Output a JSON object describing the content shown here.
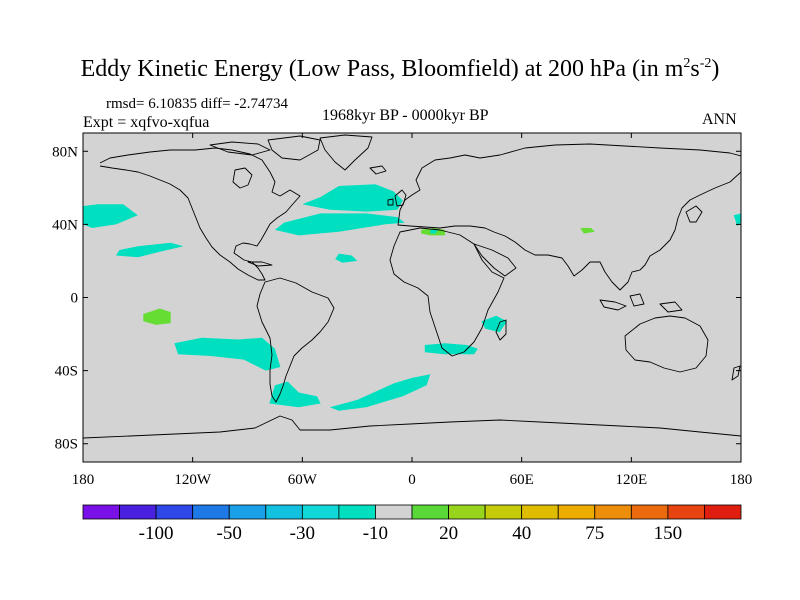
{
  "title": {
    "main": "Eddy Kinetic Energy (Low Pass, Bloomfield) at 200 hPa (in m",
    "sup1": "2",
    "mid": "s",
    "sup2": "-2",
    "close": ")"
  },
  "stats": "rmsd= 6.10835 diff= -2.74734",
  "expt": "Expt = xqfvo-xqfua",
  "period": "1968kyr BP - 0000kyr BP",
  "season": "ANN",
  "map": {
    "lon_range": [
      -180,
      180
    ],
    "lat_range": [
      -90,
      90
    ],
    "ocean_color": "#d3d3d3",
    "land_color": "#d3d3d3",
    "coast_color": "#000000",
    "lat_ticks": [
      {
        "value": 80,
        "label": "80N"
      },
      {
        "value": 40,
        "label": "40N"
      },
      {
        "value": 0,
        "label": "0"
      },
      {
        "value": -40,
        "label": "40S"
      },
      {
        "value": -80,
        "label": "80S"
      }
    ],
    "lon_ticks": [
      {
        "value": -180,
        "label": "180"
      },
      {
        "value": -120,
        "label": "120W"
      },
      {
        "value": -60,
        "label": "60W"
      },
      {
        "value": 0,
        "label": "0"
      },
      {
        "value": 60,
        "label": "60E"
      },
      {
        "value": 120,
        "label": "120E"
      },
      {
        "value": 180,
        "label": "180"
      }
    ]
  },
  "anomaly_regions": [
    {
      "name": "north-pacific-west",
      "color": "#00e0c0",
      "points": [
        [
          -180,
          40
        ],
        [
          -175,
          38
        ],
        [
          -162,
          40
        ],
        [
          -150,
          45
        ],
        [
          -158,
          51
        ],
        [
          -172,
          51
        ],
        [
          -180,
          50
        ]
      ]
    },
    {
      "name": "north-pacific-east",
      "color": "#00e0c0",
      "points": [
        [
          178,
          39
        ],
        [
          180,
          41
        ],
        [
          180,
          46
        ],
        [
          176,
          45
        ]
      ]
    },
    {
      "name": "subtropical-pacific",
      "color": "#00e0c0",
      "points": [
        [
          -162,
          23
        ],
        [
          -150,
          22
        ],
        [
          -138,
          25
        ],
        [
          -125,
          28
        ],
        [
          -132,
          30
        ],
        [
          -150,
          28
        ],
        [
          -160,
          26
        ]
      ]
    },
    {
      "name": "north-atlantic-west",
      "color": "#00e0c0",
      "points": [
        [
          -75,
          37
        ],
        [
          -62,
          34
        ],
        [
          -40,
          36
        ],
        [
          -15,
          40
        ],
        [
          -4,
          41
        ],
        [
          -8,
          44
        ],
        [
          -25,
          46
        ],
        [
          -50,
          46
        ],
        [
          -70,
          41
        ]
      ]
    },
    {
      "name": "north-atlantic-north",
      "color": "#00e0c0",
      "points": [
        [
          -60,
          51
        ],
        [
          -50,
          55
        ],
        [
          -40,
          61
        ],
        [
          -20,
          62
        ],
        [
          -10,
          58
        ],
        [
          -5,
          53
        ],
        [
          -8,
          48
        ],
        [
          -25,
          47
        ],
        [
          -45,
          48
        ]
      ]
    },
    {
      "name": "central-atlantic",
      "color": "#00e0c0",
      "points": [
        [
          -40,
          24
        ],
        [
          -33,
          23
        ],
        [
          -30,
          20
        ],
        [
          -38,
          19
        ],
        [
          -42,
          21
        ]
      ]
    },
    {
      "name": "south-pacific",
      "color": "#00e0c0",
      "points": [
        [
          -130,
          -25
        ],
        [
          -115,
          -22
        ],
        [
          -95,
          -23
        ],
        [
          -82,
          -22
        ],
        [
          -75,
          -28
        ],
        [
          -72,
          -38
        ],
        [
          -80,
          -40
        ],
        [
          -92,
          -34
        ],
        [
          -110,
          -32
        ],
        [
          -128,
          -31
        ]
      ]
    },
    {
      "name": "south-america-tip",
      "color": "#00e0c0",
      "points": [
        [
          -75,
          -48
        ],
        [
          -68,
          -46
        ],
        [
          -62,
          -52
        ],
        [
          -52,
          -54
        ],
        [
          -50,
          -58
        ],
        [
          -62,
          -60
        ],
        [
          -78,
          -58
        ]
      ]
    },
    {
      "name": "south-atlantic",
      "color": "#00e0c0",
      "points": [
        [
          -45,
          -60
        ],
        [
          -30,
          -56
        ],
        [
          -10,
          -47
        ],
        [
          0,
          -44
        ],
        [
          10,
          -42
        ],
        [
          8,
          -48
        ],
        [
          -5,
          -54
        ],
        [
          -25,
          -60
        ],
        [
          -40,
          -62
        ]
      ]
    },
    {
      "name": "south-africa",
      "color": "#00e0c0",
      "points": [
        [
          7,
          -26
        ],
        [
          18,
          -25
        ],
        [
          30,
          -26
        ],
        [
          36,
          -28
        ],
        [
          34,
          -31
        ],
        [
          18,
          -31
        ],
        [
          7,
          -30
        ]
      ]
    },
    {
      "name": "mozambique-channel",
      "color": "#00e0c0",
      "points": [
        [
          38,
          -13
        ],
        [
          46,
          -10
        ],
        [
          52,
          -13
        ],
        [
          48,
          -19
        ],
        [
          40,
          -17
        ]
      ]
    },
    {
      "name": "mediterranean",
      "color": "#66dd33",
      "points": [
        [
          5,
          37
        ],
        [
          12,
          38
        ],
        [
          18,
          37
        ],
        [
          18,
          34
        ],
        [
          10,
          34
        ],
        [
          5,
          35
        ]
      ]
    },
    {
      "name": "mediterranean-core",
      "color": "#00e0c0",
      "points": [
        [
          10,
          37
        ],
        [
          14,
          37
        ],
        [
          13,
          35
        ],
        [
          10,
          35
        ]
      ]
    },
    {
      "name": "tibet",
      "color": "#66dd33",
      "points": [
        [
          92,
          38
        ],
        [
          98,
          38
        ],
        [
          100,
          36
        ],
        [
          94,
          35
        ]
      ]
    },
    {
      "name": "tropical-pacific-green",
      "color": "#66dd33",
      "points": [
        [
          -147,
          -9
        ],
        [
          -138,
          -6
        ],
        [
          -132,
          -8
        ],
        [
          -132,
          -14
        ],
        [
          -140,
          -15
        ],
        [
          -147,
          -13
        ]
      ]
    }
  ],
  "colorbar": {
    "colors": [
      "#7a10e8",
      "#4a20e0",
      "#2d48e6",
      "#1e78e6",
      "#1aa0e8",
      "#12c0e0",
      "#10d8d8",
      "#00e0c0",
      "#d3d3d3",
      "#5ad838",
      "#98d41c",
      "#c4cc0a",
      "#e0bc00",
      "#ecac00",
      "#ec8e0a",
      "#ec6a0e",
      "#e84412",
      "#e01e10"
    ],
    "labels": [
      {
        "index": 2,
        "text": "-100"
      },
      {
        "index": 4,
        "text": "-50"
      },
      {
        "index": 6,
        "text": "-30"
      },
      {
        "index": 8,
        "text": "-10"
      },
      {
        "index": 10,
        "text": "20"
      },
      {
        "index": 12,
        "text": "40"
      },
      {
        "index": 14,
        "text": "75"
      },
      {
        "index": 16,
        "text": "150"
      }
    ]
  }
}
